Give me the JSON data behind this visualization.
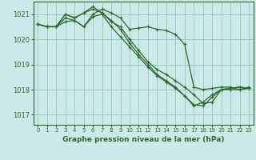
{
  "title": "Graphe pression niveau de la mer (hPa)",
  "background_color": "#cbe9e9",
  "grid_color": "#99ccbb",
  "line_color": "#2d6a2d",
  "xlim": [
    -0.5,
    23.5
  ],
  "ylim": [
    1016.6,
    1021.5
  ],
  "yticks": [
    1017,
    1018,
    1019,
    1020,
    1021
  ],
  "xticks": [
    0,
    1,
    2,
    3,
    4,
    5,
    6,
    7,
    8,
    9,
    10,
    11,
    12,
    13,
    14,
    15,
    16,
    17,
    18,
    19,
    20,
    21,
    22,
    23
  ],
  "series": [
    [
      1020.6,
      1020.5,
      1020.5,
      1020.7,
      1020.75,
      1020.5,
      1021.0,
      1021.2,
      1021.05,
      1020.85,
      1020.4,
      1020.45,
      1020.5,
      1020.4,
      1020.35,
      1020.2,
      1019.8,
      1018.1,
      1018.0,
      1018.05,
      1018.1,
      1018.1,
      1018.0,
      1018.1
    ],
    [
      1020.6,
      1020.5,
      1020.5,
      1021.0,
      1020.85,
      1021.05,
      1021.3,
      1021.05,
      1020.7,
      1020.5,
      1020.0,
      1019.55,
      1019.1,
      1018.8,
      1018.6,
      1018.35,
      1018.1,
      1017.8,
      1017.45,
      1017.5,
      1018.0,
      1018.05,
      1018.1,
      1018.05
    ],
    [
      1020.6,
      1020.5,
      1020.5,
      1020.85,
      1020.75,
      1020.5,
      1020.9,
      1021.0,
      1020.5,
      1020.1,
      1019.7,
      1019.3,
      1018.9,
      1018.55,
      1018.3,
      1018.05,
      1017.75,
      1017.4,
      1017.35,
      1017.7,
      1018.0,
      1018.0,
      1018.0,
      1018.05
    ],
    [
      1020.6,
      1020.5,
      1020.5,
      1021.0,
      1020.85,
      1021.05,
      1021.2,
      1021.05,
      1020.75,
      1020.4,
      1019.85,
      1019.4,
      1019.0,
      1018.6,
      1018.35,
      1018.1,
      1017.75,
      1017.35,
      1017.5,
      1017.8,
      1018.0,
      1018.05,
      1018.1,
      1018.05
    ]
  ]
}
